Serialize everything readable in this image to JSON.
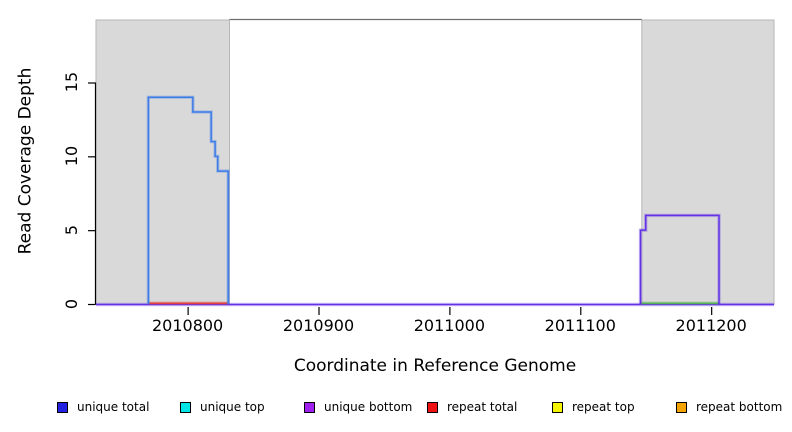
{
  "figure": {
    "kind": "R coverage plot",
    "xlabel": "Coordinate in Reference Genome",
    "ylabel": "Read Coverage Depth"
  },
  "chart_data": {
    "type": "line",
    "subtype": "step-coverage",
    "title": "",
    "xlabel": "Coordinate in Reference Genome",
    "ylabel": "Read Coverage Depth",
    "xlim": [
      2010730,
      2011248
    ],
    "ylim": [
      0,
      19.3
    ],
    "x_ticks": [
      2010800,
      2010900,
      2011000,
      2011100,
      2011200
    ],
    "y_ticks": [
      0,
      5,
      10,
      15
    ],
    "grid": false,
    "legend_position": "bottom",
    "shaded_regions": [
      {
        "name": "repeat-region-left",
        "x0": 2010730,
        "x1": 2010832
      },
      {
        "name": "repeat-region-right",
        "x0": 2011147,
        "x1": 2011248
      }
    ],
    "series": [
      {
        "name": "unique total",
        "color": "#3D7BE8",
        "points": [
          [
            2010770,
            0
          ],
          [
            2010770,
            14
          ],
          [
            2010804,
            14
          ],
          [
            2010804,
            13
          ],
          [
            2010818,
            13
          ],
          [
            2010818,
            11
          ],
          [
            2010821,
            11
          ],
          [
            2010821,
            10
          ],
          [
            2010823,
            10
          ],
          [
            2010823,
            9
          ],
          [
            2010831,
            9
          ],
          [
            2010831,
            0
          ]
        ]
      },
      {
        "name": "unique bottom",
        "color": "#6233E6",
        "points": [
          [
            2011146,
            0
          ],
          [
            2011146,
            5
          ],
          [
            2011150,
            5
          ],
          [
            2011150,
            6
          ],
          [
            2011206,
            6
          ],
          [
            2011206,
            0
          ]
        ]
      }
    ],
    "baseline_segments": [
      {
        "name": "unique bottom zero line",
        "color": "#6233E6",
        "x0": 2010730,
        "x1": 2011248
      },
      {
        "name": "repeat total zero segment",
        "color": "#E04040",
        "x0": 2010770,
        "x1": 2010831
      },
      {
        "name": "green zero segment",
        "color": "#55B055",
        "x0": 2011146,
        "x1": 2011206
      }
    ],
    "legend": [
      {
        "label": "unique total",
        "color": "#2222E0"
      },
      {
        "label": "unique top",
        "color": "#00E5E5"
      },
      {
        "label": "unique bottom",
        "color": "#A020F0"
      },
      {
        "label": "repeat total",
        "color": "#EE1111"
      },
      {
        "label": "repeat top",
        "color": "#F5F500"
      },
      {
        "label": "repeat bottom",
        "color": "#F5A300"
      }
    ],
    "colors": {
      "region_fill": "#D9D9D9",
      "region_border": "#B6B6B6",
      "box_line": "#6E6E6E",
      "axis": "#000000"
    }
  }
}
